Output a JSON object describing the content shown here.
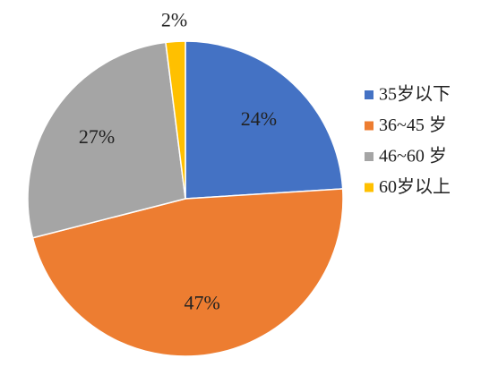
{
  "chart_data": {
    "type": "pie",
    "categories": [
      "35岁以下",
      "36~45 岁",
      "46~60 岁",
      "60岁以上"
    ],
    "values": [
      24,
      47,
      27,
      2
    ],
    "value_labels": [
      "24%",
      "47%",
      "27%",
      "2%"
    ],
    "colors": [
      "#4472c4",
      "#ed7d31",
      "#a5a5a5",
      "#ffc000"
    ],
    "legend": "right"
  }
}
